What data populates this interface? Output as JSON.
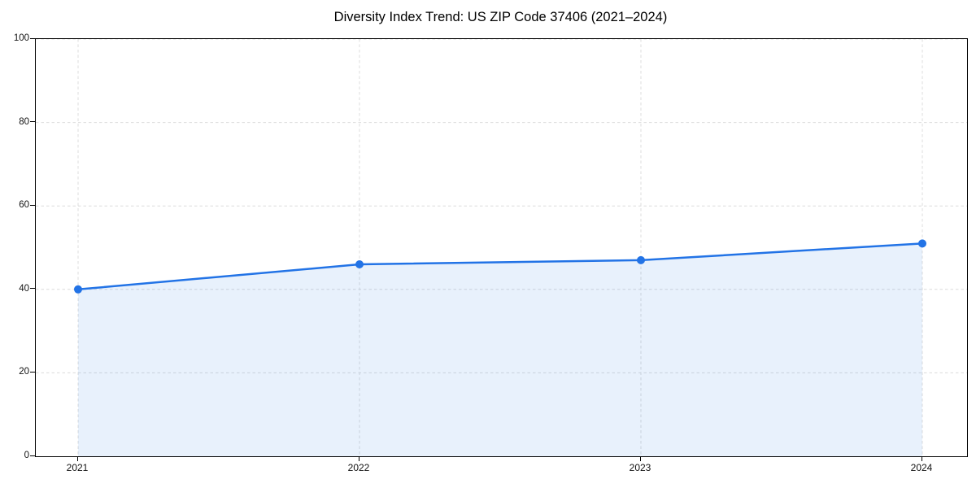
{
  "chart_data": {
    "type": "area",
    "title": "Diversity Index Trend: US ZIP Code 37406 (2021–2024)",
    "categories": [
      "2021",
      "2022",
      "2023",
      "2024"
    ],
    "series": [
      {
        "name": "Diversity Index",
        "values": [
          40,
          46,
          47,
          51
        ]
      }
    ],
    "xlabel": "",
    "ylabel": "",
    "ylim": [
      0,
      100
    ],
    "yticks": [
      0,
      20,
      40,
      60,
      80,
      100
    ],
    "grid": true,
    "grid_style": "dashed",
    "legend_position": "none",
    "colors": {
      "line": "#2273e6",
      "marker": "#2273e6",
      "fill": "#2273e6",
      "fill_opacity": 0.1,
      "grid": "#dcdcdc",
      "axis": "#000000",
      "text": "#111111",
      "background": "#ffffff"
    }
  }
}
